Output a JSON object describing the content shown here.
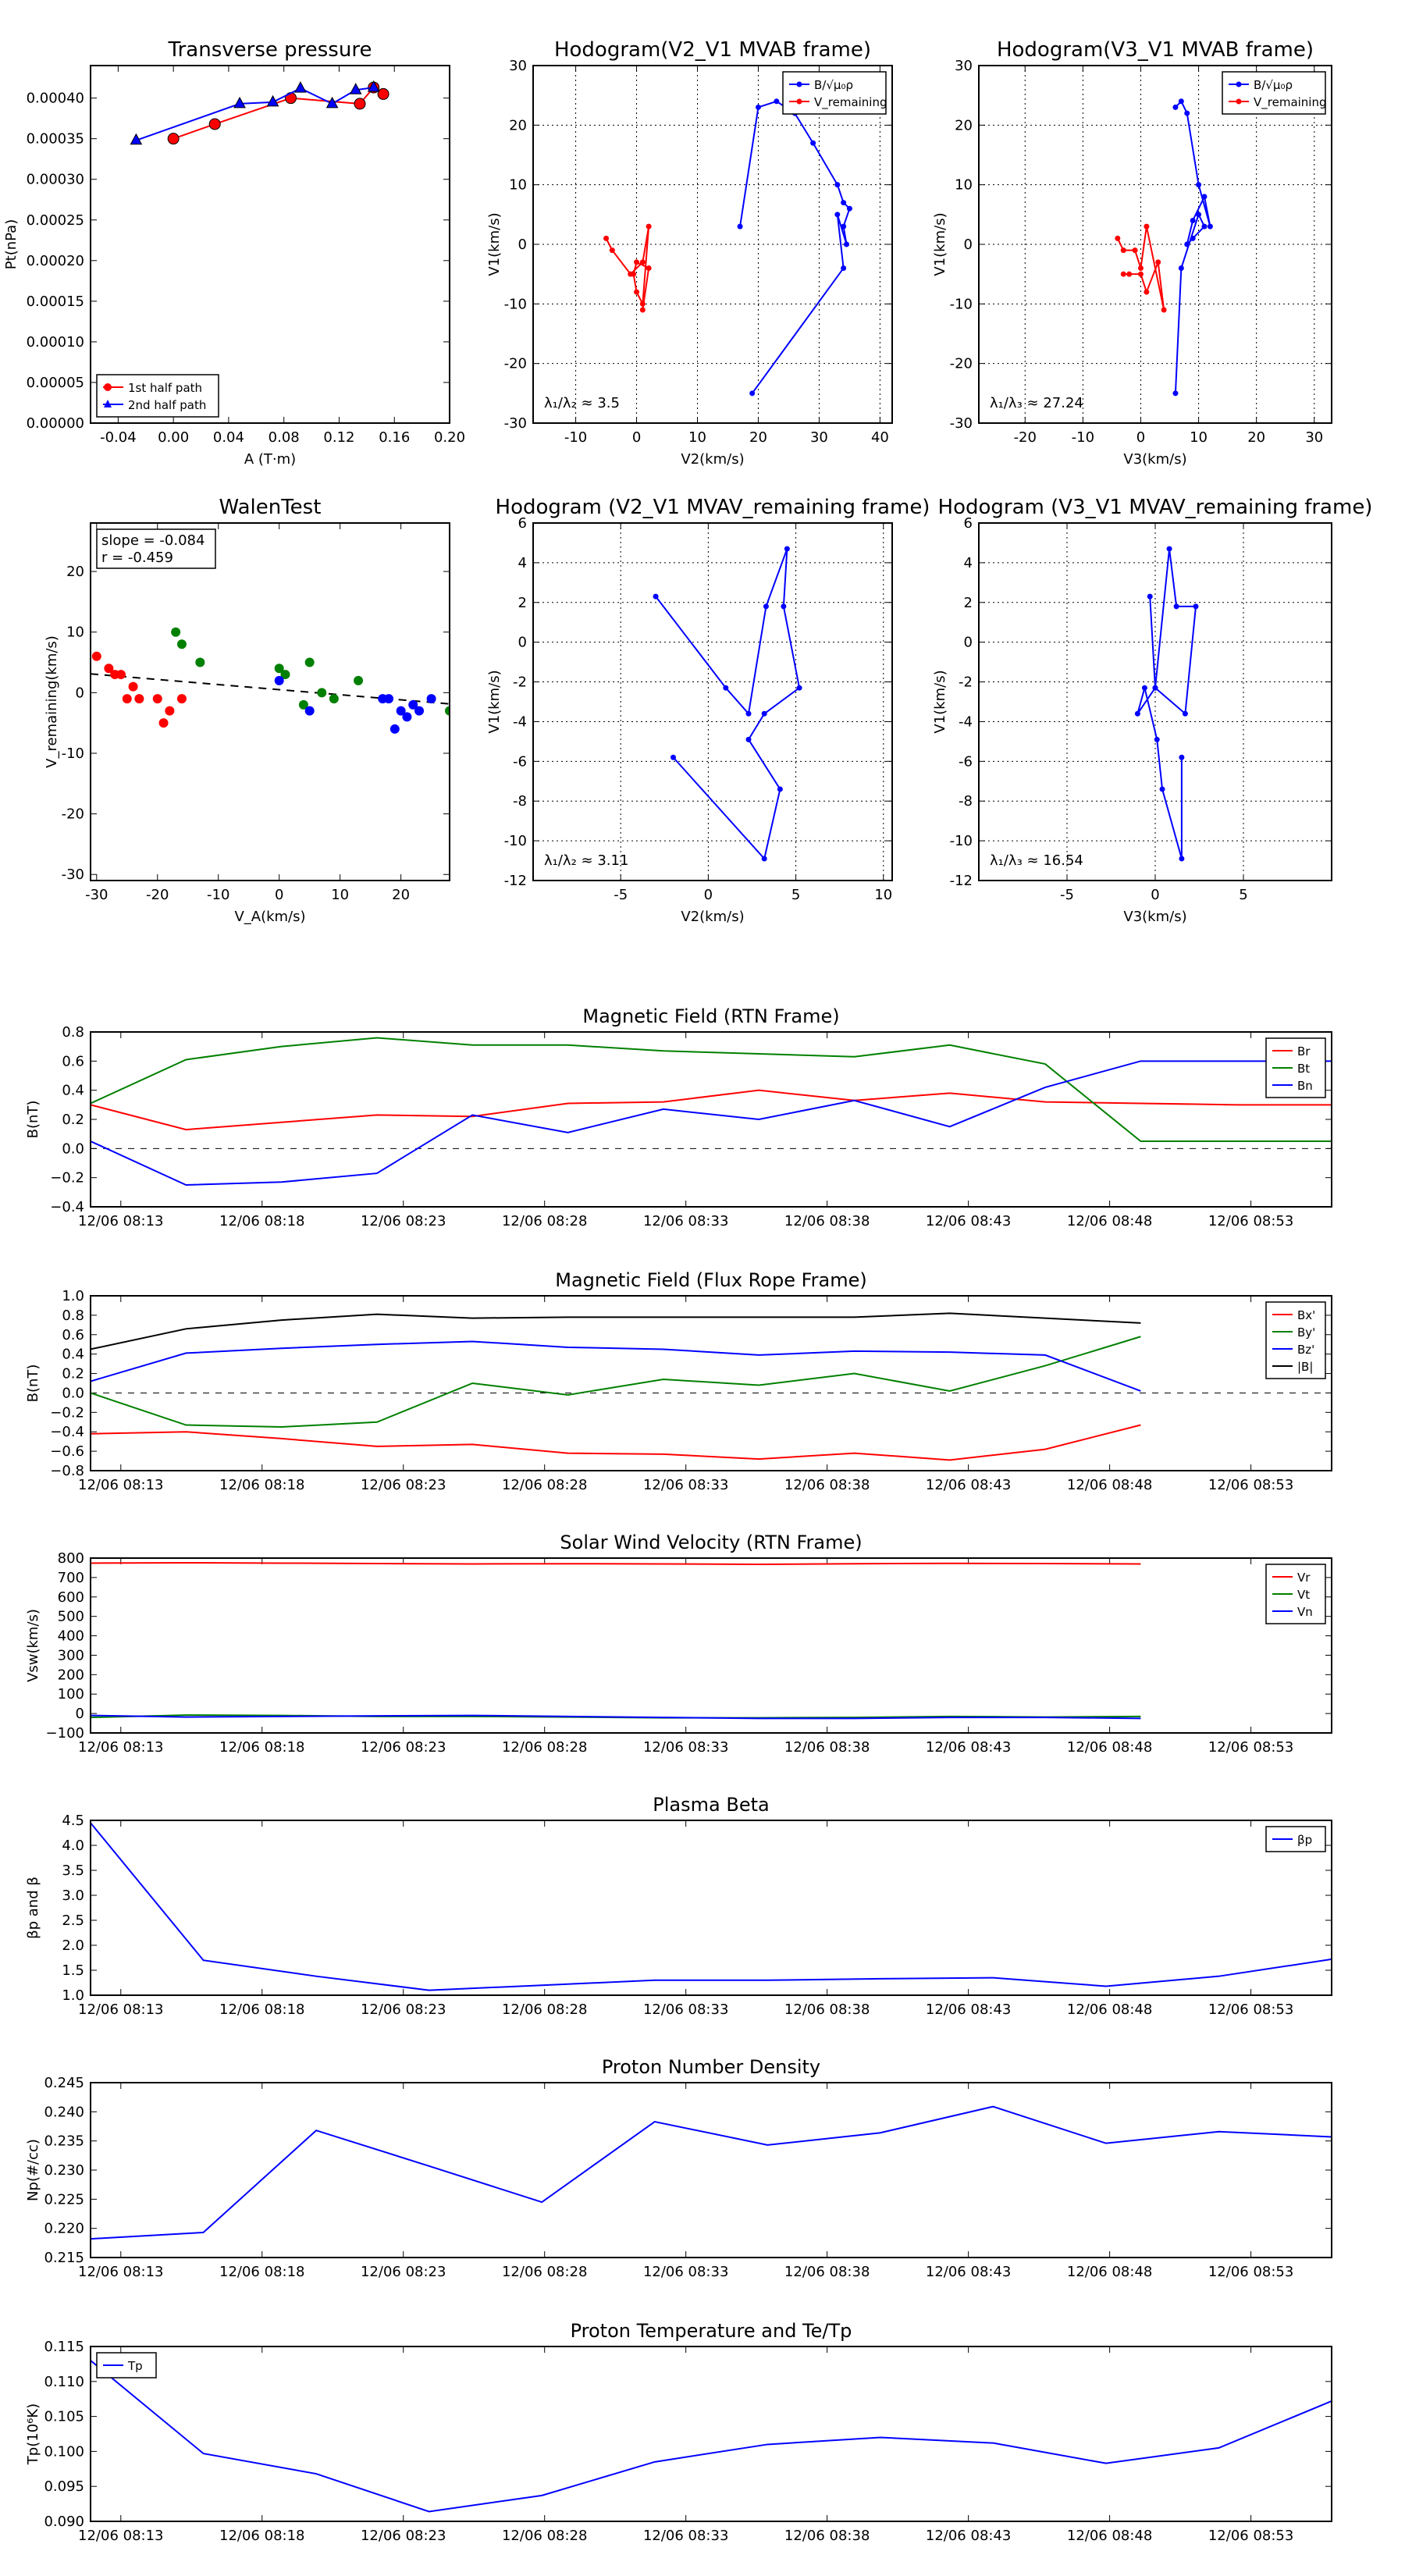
{
  "common": {
    "time_ticks": [
      "12/06 08:13",
      "12/06 08:18",
      "12/06 08:23",
      "12/06 08:28",
      "12/06 08:33",
      "12/06 08:38",
      "12/06 08:43",
      "12/06 08:48",
      "12/06 08:53"
    ]
  },
  "chart_data": [
    {
      "id": "tp",
      "type": "line+scatter",
      "title": "Transverse pressure",
      "xlabel": "A (T·m)",
      "ylabel": "Pt(nPa)",
      "xlim": [
        -0.06,
        0.2
      ],
      "ylim": [
        0.0,
        0.00044
      ],
      "xticks": [
        "-0.04",
        "0.00",
        "0.04",
        "0.08",
        "0.12",
        "0.16",
        "0.20"
      ],
      "yticks": [
        "0.00000",
        "0.00005",
        "0.00010",
        "0.00015",
        "0.00020",
        "0.00025",
        "0.00030",
        "0.00035",
        "0.00040"
      ],
      "legend": "bottom-left",
      "series": [
        {
          "name": "1st half path",
          "color": "#ff0000",
          "marker": "circle",
          "x": [
            0.0,
            0.03,
            0.085,
            0.135,
            0.145,
            0.152
          ],
          "y": [
            0.00035,
            0.000368,
            0.0004,
            0.000393,
            0.000413,
            0.000405
          ]
        },
        {
          "name": "2nd half path",
          "color": "#0000ff",
          "marker": "triangle",
          "x": [
            -0.027,
            0.048,
            0.072,
            0.092,
            0.115,
            0.132,
            0.145
          ],
          "y": [
            0.000348,
            0.000393,
            0.000395,
            0.000412,
            0.000393,
            0.00041,
            0.000413
          ]
        }
      ]
    },
    {
      "id": "h1",
      "type": "line",
      "title": "Hodogram(V2_V1 MVAB frame)",
      "xlabel": "V2(km/s)",
      "ylabel": "V1(km/s)",
      "xlim": [
        -17,
        42
      ],
      "ylim": [
        -30,
        30
      ],
      "xticks": [
        "-10",
        "0",
        "10",
        "20",
        "30",
        "40"
      ],
      "yticks": [
        "-30",
        "-20",
        "-10",
        "0",
        "10",
        "20",
        "30"
      ],
      "legend": "top-right",
      "annotation": "λ₁/λ₂ ≈ 3.5",
      "series": [
        {
          "name": "B/√μ₀ρ",
          "color": "#0000ff",
          "x": [
            17,
            20,
            23,
            26,
            29,
            33,
            34,
            35,
            34,
            34.5,
            33,
            34,
            19
          ],
          "y": [
            3,
            23,
            24,
            22,
            17,
            10,
            7,
            6,
            3,
            0,
            5,
            -4,
            -25
          ]
        },
        {
          "name": "V_remaining",
          "color": "#ff0000",
          "x": [
            -5,
            -4,
            -1,
            1,
            2,
            1,
            0,
            -0.5,
            0,
            2,
            1
          ],
          "y": [
            1,
            -1,
            -5,
            -3,
            3,
            -10,
            -8,
            -5,
            -3,
            -4,
            -11
          ]
        }
      ]
    },
    {
      "id": "h2",
      "type": "line",
      "title": "Hodogram(V3_V1 MVAB frame)",
      "xlabel": "V3(km/s)",
      "ylabel": "V1(km/s)",
      "xlim": [
        -28,
        33
      ],
      "ylim": [
        -30,
        30
      ],
      "xticks": [
        "-20",
        "-10",
        "0",
        "10",
        "20",
        "30"
      ],
      "yticks": [
        "-30",
        "-20",
        "-10",
        "0",
        "10",
        "20",
        "30"
      ],
      "legend": "top-right",
      "annotation": "λ₁/λ₃ ≈ 27.24",
      "series": [
        {
          "name": "B/√μ₀ρ",
          "color": "#0000ff",
          "x": [
            6,
            7,
            8,
            10,
            12,
            11,
            9,
            8,
            9,
            11,
            10,
            7,
            6
          ],
          "y": [
            23,
            24,
            22,
            10,
            3,
            8,
            4,
            0,
            1,
            3,
            5,
            -4,
            -25
          ]
        },
        {
          "name": "V_remaining",
          "color": "#ff0000",
          "x": [
            -4,
            -3,
            -1,
            0,
            1,
            4,
            3,
            1,
            0,
            -2,
            -3
          ],
          "y": [
            1,
            -1,
            -1,
            -4,
            3,
            -11,
            -3,
            -8,
            -5,
            -5,
            -5
          ]
        }
      ]
    },
    {
      "id": "wt",
      "type": "scatter",
      "title": "WalenTest",
      "xlabel": "V_A(km/s)",
      "ylabel": "V_remaining(km/s)",
      "xlim": [
        -31,
        28
      ],
      "ylim": [
        -31,
        28
      ],
      "xticks": [
        "-30",
        "-20",
        "-10",
        "0",
        "10",
        "20"
      ],
      "yticks": [
        "-30",
        "-20",
        "-10",
        "0",
        "10",
        "20"
      ],
      "annotation": [
        "slope = -0.084",
        "r = -0.459"
      ],
      "fit": {
        "slope": -0.084,
        "intercept": 0.5
      },
      "series": [
        {
          "name": "red",
          "color": "#ff0000",
          "x": [
            -30,
            -28,
            -27,
            -26,
            -25,
            -24,
            -23,
            -20,
            -19,
            -18,
            -16
          ],
          "y": [
            6,
            4,
            3,
            3,
            -1,
            1,
            -1,
            -1,
            -5,
            -3,
            -1
          ]
        },
        {
          "name": "green",
          "color": "#008000",
          "x": [
            -17,
            -16,
            -13,
            0,
            1,
            4,
            5,
            7,
            9,
            13,
            28
          ],
          "y": [
            10,
            8,
            5,
            4,
            3,
            -2,
            5,
            0,
            -1,
            2,
            -3
          ]
        },
        {
          "name": "blue",
          "color": "#0000ff",
          "x": [
            0,
            5,
            17,
            18,
            19,
            20,
            21,
            22,
            23,
            25
          ],
          "y": [
            2,
            -3,
            -1,
            -1,
            -6,
            -3,
            -4,
            -2,
            -3,
            -1
          ]
        }
      ]
    },
    {
      "id": "h3",
      "type": "line",
      "title": "Hodogram (V2_V1 MVAV_remaining frame)",
      "xlabel": "V2(km/s)",
      "ylabel": "V1(km/s)",
      "xlim": [
        -10,
        10.5
      ],
      "ylim": [
        -12,
        6
      ],
      "xticks": [
        "-5",
        "0",
        "5",
        "10"
      ],
      "yticks": [
        "-12",
        "-10",
        "-8",
        "-6",
        "-4",
        "-2",
        "0",
        "2",
        "4",
        "6"
      ],
      "annotation": "λ₁/λ₂ ≈ 3.11",
      "series": [
        {
          "name": "blue",
          "color": "#0000ff",
          "x": [
            -3,
            1,
            2.3,
            3.3,
            4.5,
            4.3,
            5.2,
            3.2,
            2.3,
            4.1,
            3.2,
            -2
          ],
          "y": [
            2.3,
            -2.3,
            -3.6,
            1.8,
            4.7,
            1.8,
            -2.3,
            -3.6,
            -4.9,
            -7.4,
            -10.9,
            -5.8
          ]
        }
      ]
    },
    {
      "id": "h4",
      "type": "line",
      "title": "Hodogram (V3_V1 MVAV_remaining frame)",
      "xlabel": "V3(km/s)",
      "ylabel": "V1(km/s)",
      "xlim": [
        -10,
        10
      ],
      "ylim": [
        -12,
        6
      ],
      "xticks": [
        "-5",
        "0",
        "5"
      ],
      "yticks": [
        "-12",
        "-10",
        "-8",
        "-6",
        "-4",
        "-2",
        "0",
        "2",
        "4",
        "6"
      ],
      "annotation": "λ₁/λ₃ ≈ 16.54",
      "series": [
        {
          "name": "blue",
          "color": "#0000ff",
          "x": [
            -0.3,
            0,
            0.8,
            1.2,
            2.3,
            1.7,
            0,
            -1,
            -0.6,
            0.1,
            0.4,
            1.5,
            1.5
          ],
          "y": [
            2.3,
            -2.3,
            4.7,
            1.8,
            1.8,
            -3.6,
            -2.3,
            -3.6,
            -2.3,
            -4.9,
            -7.4,
            -10.9,
            -5.8
          ]
        }
      ]
    },
    {
      "id": "mf",
      "type": "line",
      "title": "Magnetic Field (RTN Frame)",
      "ylabel": "B(nT)",
      "xlim": [
        0,
        13
      ],
      "ylim": [
        -0.4,
        0.8
      ],
      "zero_line": true,
      "yticks": [
        "−0.4",
        "−0.2",
        "0.0",
        "0.2",
        "0.4",
        "0.6",
        "0.8"
      ],
      "legend": "top-right",
      "x": [
        0,
        1,
        2,
        3,
        4,
        5,
        6,
        7,
        8,
        9,
        10,
        11,
        12,
        13
      ],
      "series": [
        {
          "name": "Br",
          "color": "#ff0000",
          "values": [
            0.3,
            0.13,
            0.18,
            0.23,
            0.22,
            0.31,
            0.32,
            0.4,
            0.33,
            0.38,
            0.32,
            0.31,
            0.3,
            0.3
          ]
        },
        {
          "name": "Bt",
          "color": "#008000",
          "values": [
            0.31,
            0.61,
            0.7,
            0.76,
            0.71,
            0.71,
            0.67,
            0.65,
            0.63,
            0.71,
            0.58,
            0.05,
            0.05,
            0.05
          ]
        },
        {
          "name": "Bn",
          "color": "#0000ff",
          "values": [
            0.05,
            -0.25,
            -0.23,
            -0.17,
            0.23,
            0.11,
            0.27,
            0.2,
            0.33,
            0.15,
            0.42,
            0.6,
            0.6,
            0.6
          ]
        }
      ]
    },
    {
      "id": "mff",
      "type": "line",
      "title": "Magnetic Field (Flux Rope Frame)",
      "ylabel": "B(nT)",
      "xlim": [
        0,
        13
      ],
      "ylim": [
        -0.8,
        1.0
      ],
      "zero_line": true,
      "yticks": [
        "−0.8",
        "−0.6",
        "−0.4",
        "−0.2",
        "0.0",
        "0.2",
        "0.4",
        "0.6",
        "0.8",
        "1.0"
      ],
      "legend": "top-right",
      "x": [
        0,
        1,
        2,
        3,
        4,
        5,
        6,
        7,
        8,
        9,
        10,
        11
      ],
      "series": [
        {
          "name": "Bx'",
          "color": "#ff0000",
          "values": [
            -0.42,
            -0.4,
            -0.47,
            -0.55,
            -0.53,
            -0.62,
            -0.63,
            -0.68,
            -0.62,
            -0.69,
            -0.58,
            -0.33
          ]
        },
        {
          "name": "By'",
          "color": "#008000",
          "values": [
            0.0,
            -0.33,
            -0.35,
            -0.3,
            0.1,
            -0.02,
            0.14,
            0.08,
            0.2,
            0.02,
            0.28,
            0.58
          ]
        },
        {
          "name": "Bz'",
          "color": "#0000ff",
          "values": [
            0.12,
            0.41,
            0.46,
            0.5,
            0.53,
            0.47,
            0.45,
            0.39,
            0.43,
            0.42,
            0.39,
            0.02
          ]
        },
        {
          "name": "|B|",
          "color": "#000000",
          "values": [
            0.45,
            0.66,
            0.75,
            0.81,
            0.77,
            0.78,
            0.78,
            0.78,
            0.78,
            0.82,
            0.77,
            0.72
          ]
        }
      ]
    },
    {
      "id": "sw",
      "type": "line",
      "title": "Solar Wind Velocity (RTN Frame)",
      "ylabel": "Vsw(km/s)",
      "xlim": [
        0,
        13
      ],
      "ylim": [
        -100,
        800
      ],
      "yticks": [
        "−100",
        "0",
        "100",
        "200",
        "300",
        "400",
        "500",
        "600",
        "700",
        "800"
      ],
      "legend": "top-right",
      "x": [
        0,
        1,
        2,
        3,
        4,
        5,
        6,
        7,
        8,
        9,
        10,
        11
      ],
      "series": [
        {
          "name": "Vr",
          "color": "#ff0000",
          "values": [
            774,
            776,
            774,
            772,
            770,
            771,
            770,
            768,
            771,
            773,
            772,
            770
          ]
        },
        {
          "name": "Vt",
          "color": "#008000",
          "values": [
            -20,
            -8,
            -10,
            -15,
            -15,
            -18,
            -22,
            -22,
            -20,
            -15,
            -18,
            -15
          ]
        },
        {
          "name": "Vn",
          "color": "#0000ff",
          "values": [
            -10,
            -18,
            -15,
            -12,
            -10,
            -15,
            -20,
            -25,
            -25,
            -20,
            -20,
            -25
          ]
        }
      ]
    },
    {
      "id": "pb",
      "type": "line",
      "title": "Plasma Beta",
      "ylabel": "βp and β",
      "xlim": [
        0,
        11
      ],
      "ylim": [
        1.0,
        4.5
      ],
      "yticks": [
        "1.0",
        "1.5",
        "2.0",
        "2.5",
        "3.0",
        "3.5",
        "4.0",
        "4.5"
      ],
      "legend": "top-right",
      "x": [
        0,
        1,
        2,
        3,
        4,
        5,
        6,
        7,
        8,
        9,
        10,
        11
      ],
      "series": [
        {
          "name": "βp",
          "color": "#0000ff",
          "values": [
            4.45,
            1.7,
            1.38,
            1.1,
            1.2,
            1.3,
            1.3,
            1.33,
            1.35,
            1.18,
            1.38,
            1.72
          ]
        }
      ]
    },
    {
      "id": "nd",
      "type": "line",
      "title": "Proton Number Density",
      "ylabel": "Np(#/cc)",
      "xlim": [
        0,
        11
      ],
      "ylim": [
        0.215,
        0.245
      ],
      "yticks": [
        "0.215",
        "0.220",
        "0.225",
        "0.230",
        "0.235",
        "0.240",
        "0.245"
      ],
      "x": [
        0,
        1,
        2,
        3,
        4,
        5,
        6,
        7,
        8,
        9,
        10,
        11
      ],
      "series": [
        {
          "name": "Np",
          "color": "#0000ff",
          "values": [
            0.2182,
            0.2193,
            0.2368,
            0.2307,
            0.2245,
            0.2383,
            0.2343,
            0.2364,
            0.2409,
            0.2346,
            0.2366,
            0.2357
          ]
        }
      ]
    },
    {
      "id": "pt",
      "type": "line",
      "title": "Proton Temperature and Te/Tp",
      "ylabel": "Tp(10⁶K)",
      "xlim": [
        0,
        11
      ],
      "ylim": [
        0.09,
        0.115
      ],
      "yticks": [
        "0.090",
        "0.095",
        "0.100",
        "0.105",
        "0.110",
        "0.115"
      ],
      "legend": "top-left",
      "x": [
        0,
        1,
        2,
        3,
        4,
        5,
        6,
        7,
        8,
        9,
        10,
        11
      ],
      "series": [
        {
          "name": "Tp",
          "color": "#0000ff",
          "values": [
            0.113,
            0.0997,
            0.0968,
            0.0914,
            0.0937,
            0.0985,
            0.101,
            0.102,
            0.1012,
            0.0983,
            0.1005,
            0.1072
          ]
        }
      ]
    }
  ]
}
